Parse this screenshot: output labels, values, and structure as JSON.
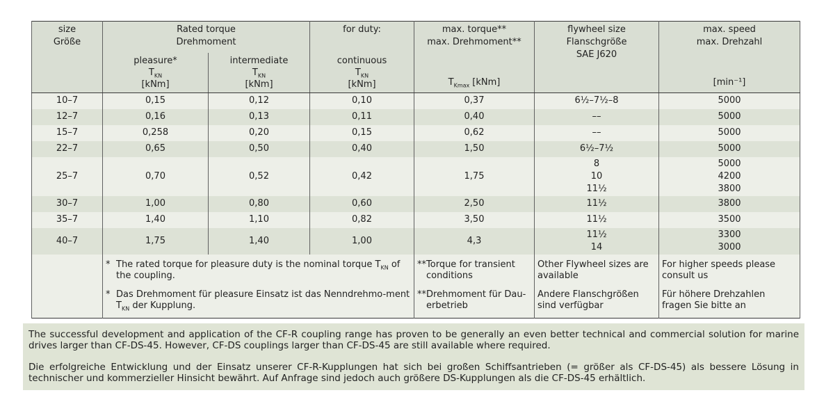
{
  "colors": {
    "header_bg": "#d9ded3",
    "row_light": "#edefe8",
    "row_dark": "#dde2d6",
    "bottom_bg": "#dfe4d5",
    "border": "#383838",
    "text": "#222222"
  },
  "header": {
    "size": [
      "size",
      "Größe"
    ],
    "rated_torque": [
      "Rated torque",
      "Drehmoment"
    ],
    "for_duty": "for duty:",
    "sub": {
      "pleasure": "pleasure*",
      "intermediate": "intermediate",
      "continuous": "continuous",
      "t_base": "T",
      "t_sub": "KN",
      "unit": "[kNm]"
    },
    "max_torque": {
      "lines": [
        "max. torque**",
        "max. Drehmoment**"
      ],
      "t_base": "T",
      "t_sub": "Kmax",
      "unit": "[kNm]"
    },
    "flywheel": [
      "flywheel size",
      "Flanschgröße",
      "SAE J620"
    ],
    "speed": {
      "lines": [
        "max. speed",
        "max. Drehzahl"
      ],
      "unit": "[min⁻¹]"
    }
  },
  "rows": [
    {
      "size": "10–7",
      "pleasure": "0,15",
      "intermediate": "0,12",
      "continuous": "0,10",
      "max_torque": "0,37",
      "flywheel": [
        "6½–7½–8"
      ],
      "speed": [
        "5000"
      ]
    },
    {
      "size": "12–7",
      "pleasure": "0,16",
      "intermediate": "0,13",
      "continuous": "0,11",
      "max_torque": "0,40",
      "flywheel": [
        "––"
      ],
      "speed": [
        "5000"
      ]
    },
    {
      "size": "15–7",
      "pleasure": "0,258",
      "intermediate": "0,20",
      "continuous": "0,15",
      "max_torque": "0,62",
      "flywheel": [
        "––"
      ],
      "speed": [
        "5000"
      ]
    },
    {
      "size": "22–7",
      "pleasure": "0,65",
      "intermediate": "0,50",
      "continuous": "0,40",
      "max_torque": "1,50",
      "flywheel": [
        "6½–7½"
      ],
      "speed": [
        "5000"
      ]
    },
    {
      "size": "25–7",
      "pleasure": "0,70",
      "intermediate": "0,52",
      "continuous": "0,42",
      "max_torque": "1,75",
      "flywheel": [
        "8",
        "10",
        "11½"
      ],
      "speed": [
        "5000",
        "4200",
        "3800"
      ]
    },
    {
      "size": "30–7",
      "pleasure": "1,00",
      "intermediate": "0,80",
      "continuous": "0,60",
      "max_torque": "2,50",
      "flywheel": [
        "11½"
      ],
      "speed": [
        "3800"
      ]
    },
    {
      "size": "35–7",
      "pleasure": "1,40",
      "intermediate": "1,10",
      "continuous": "0,82",
      "max_torque": "3,50",
      "flywheel": [
        "11½"
      ],
      "speed": [
        "3500"
      ]
    },
    {
      "size": "40–7",
      "pleasure": "1,75",
      "intermediate": "1,40",
      "continuous": "1,00",
      "max_torque": "4,3",
      "flywheel": [
        "11½",
        "14"
      ],
      "speed": [
        "3300",
        "3000"
      ]
    }
  ],
  "footnotes": {
    "rated": [
      {
        "marker": "*",
        "pre": "The rated torque for pleasure duty is the nominal torque T",
        "sub": "KN",
        "post": " of the coupling."
      },
      {
        "marker": "*",
        "pre": "Das Drehmoment für pleasure Einsatz ist das Nenndrehmo-ment T",
        "sub": "KN",
        "post": " der Kupplung."
      }
    ],
    "max_torque": [
      {
        "marker": "**",
        "text": "Torque for transient conditions"
      },
      {
        "marker": "**",
        "text": "Drehmoment für Dau-erbetrieb"
      }
    ],
    "flywheel": [
      "Other Flywheel sizes are available",
      "Andere Flanschgrößen sind verfügbar"
    ],
    "speed": [
      "For higher speeds please consult us",
      "Für höhere Drehzahlen fragen Sie bitte an"
    ]
  },
  "bottom_paragraphs": [
    "The successful development and application of the CF-R coupling range has proven to be generally an even better technical and commercial solution for marine drives larger than CF-DS-45. However, CF-DS couplings larger than CF-DS-45 are still available where required.",
    "Die erfolgreiche Entwicklung und der Einsatz unserer CF-R-Kupplungen hat sich bei großen Schiffsantrieben (= größer als CF-DS-45) als bessere Lösung in technischer und kommerzieller Hinsicht bewährt. Auf Anfrage sind jedoch auch größere DS-Kupplungen als die CF-DS-45 erhältlich."
  ]
}
